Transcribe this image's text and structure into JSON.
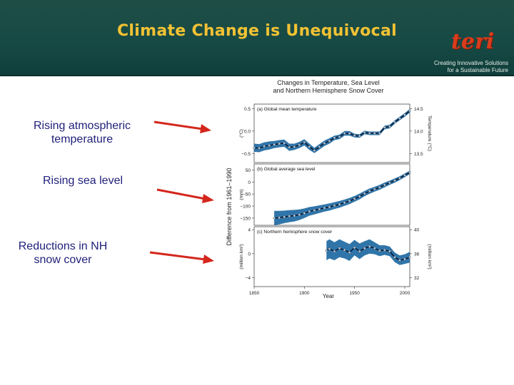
{
  "slide": {
    "title": "Climate Change is Unequivocal",
    "labels": [
      "Rising atmospheric temperature",
      "Rising sea level",
      "Reductions in NH snow cover"
    ]
  },
  "logo": {
    "wordmark": "teri",
    "tagline_line1": "Creating Innovative Solutions",
    "tagline_line2": "for a Sustainable Future"
  },
  "colors": {
    "header": "#1a4a44",
    "title": "#f2c233",
    "label_text": "#1f1f7a",
    "arrow": "#d4261c",
    "band": "#1a66a0",
    "line": "#0a1a33",
    "obs": "#bcc8d6"
  },
  "chart_data": {
    "type": "line",
    "title": "Changes in Temperature, Sea Level and Northern Hemisphere Snow Cover",
    "shared_ylabel": "Difference from 1961–1990",
    "xlabel": "Year",
    "xlim": [
      1850,
      2005
    ],
    "x_ticks": [
      1850,
      1900,
      1950,
      2000
    ],
    "panels": [
      {
        "name": "temperature",
        "label": "(a) Global mean temperature",
        "ylabel_left": "(°C)",
        "ylabel_right": "Temperature (°C)",
        "ylim": [
          -0.7,
          0.6
        ],
        "y_ticks": [
          0.5,
          0.0,
          -0.5
        ],
        "right_ticks": [
          "14.5",
          "14.0",
          "13.5"
        ],
        "x": [
          1850,
          1855,
          1860,
          1865,
          1870,
          1875,
          1880,
          1885,
          1890,
          1895,
          1900,
          1905,
          1910,
          1915,
          1920,
          1925,
          1930,
          1935,
          1940,
          1945,
          1950,
          1955,
          1960,
          1965,
          1970,
          1975,
          1980,
          1985,
          1990,
          1995,
          2000,
          2005
        ],
        "smoothed": [
          -0.37,
          -0.38,
          -0.34,
          -0.32,
          -0.3,
          -0.28,
          -0.27,
          -0.36,
          -0.35,
          -0.31,
          -0.25,
          -0.35,
          -0.43,
          -0.35,
          -0.27,
          -0.22,
          -0.15,
          -0.13,
          -0.05,
          -0.05,
          -0.1,
          -0.11,
          -0.03,
          -0.05,
          -0.05,
          -0.05,
          0.08,
          0.1,
          0.2,
          0.28,
          0.36,
          0.45
        ],
        "uncertainty": [
          0.09,
          0.09,
          0.09,
          0.09,
          0.08,
          0.08,
          0.08,
          0.08,
          0.07,
          0.07,
          0.07,
          0.07,
          0.06,
          0.06,
          0.06,
          0.06,
          0.05,
          0.05,
          0.05,
          0.05,
          0.04,
          0.04,
          0.04,
          0.04,
          0.04,
          0.04,
          0.04,
          0.04,
          0.04,
          0.04,
          0.04,
          0.04
        ]
      },
      {
        "name": "sea_level",
        "label": "(b) Global average sea level",
        "ylabel_left": "(mm)",
        "ylim": [
          -180,
          75
        ],
        "y_ticks": [
          50,
          0,
          -50,
          -100,
          -150
        ],
        "x": [
          1870,
          1875,
          1880,
          1885,
          1890,
          1895,
          1900,
          1905,
          1910,
          1915,
          1920,
          1925,
          1930,
          1935,
          1940,
          1945,
          1950,
          1955,
          1960,
          1965,
          1970,
          1975,
          1980,
          1985,
          1990,
          1995,
          2000,
          2005
        ],
        "smoothed": [
          -150,
          -148,
          -145,
          -142,
          -140,
          -136,
          -130,
          -122,
          -118,
          -113,
          -108,
          -104,
          -98,
          -93,
          -86,
          -79,
          -70,
          -60,
          -48,
          -38,
          -30,
          -22,
          -12,
          -3,
          6,
          16,
          28,
          40
        ],
        "uncertainty": [
          30,
          28,
          26,
          25,
          24,
          22,
          20,
          18,
          17,
          16,
          15,
          15,
          14,
          14,
          13,
          13,
          12,
          12,
          11,
          11,
          10,
          10,
          10,
          9,
          9,
          8,
          8,
          7
        ]
      },
      {
        "name": "snow_cover",
        "label": "(c) Northern hemisphere snow cover",
        "ylabel_left": "(million km²)",
        "ylabel_right": "(million km²)",
        "ylim": [
          -5.5,
          4.5
        ],
        "y_ticks": [
          4,
          0,
          -4
        ],
        "right_ticks": [
          "40",
          "36",
          "32"
        ],
        "x": [
          1922,
          1925,
          1930,
          1935,
          1940,
          1945,
          1950,
          1955,
          1960,
          1965,
          1970,
          1975,
          1980,
          1985,
          1990,
          1995,
          2000,
          2005
        ],
        "smoothed": [
          0.5,
          0.8,
          0.4,
          0.9,
          0.6,
          0.2,
          1.0,
          0.4,
          0.9,
          1.2,
          0.9,
          0.5,
          0.6,
          0.4,
          -0.6,
          -1.1,
          -0.9,
          -0.6
        ],
        "uncertainty": [
          1.6,
          1.6,
          1.5,
          1.5,
          1.4,
          1.4,
          1.3,
          1.3,
          1.2,
          1.2,
          1.0,
          0.9,
          0.8,
          0.8,
          0.8,
          0.8,
          0.8,
          0.9
        ]
      }
    ]
  }
}
